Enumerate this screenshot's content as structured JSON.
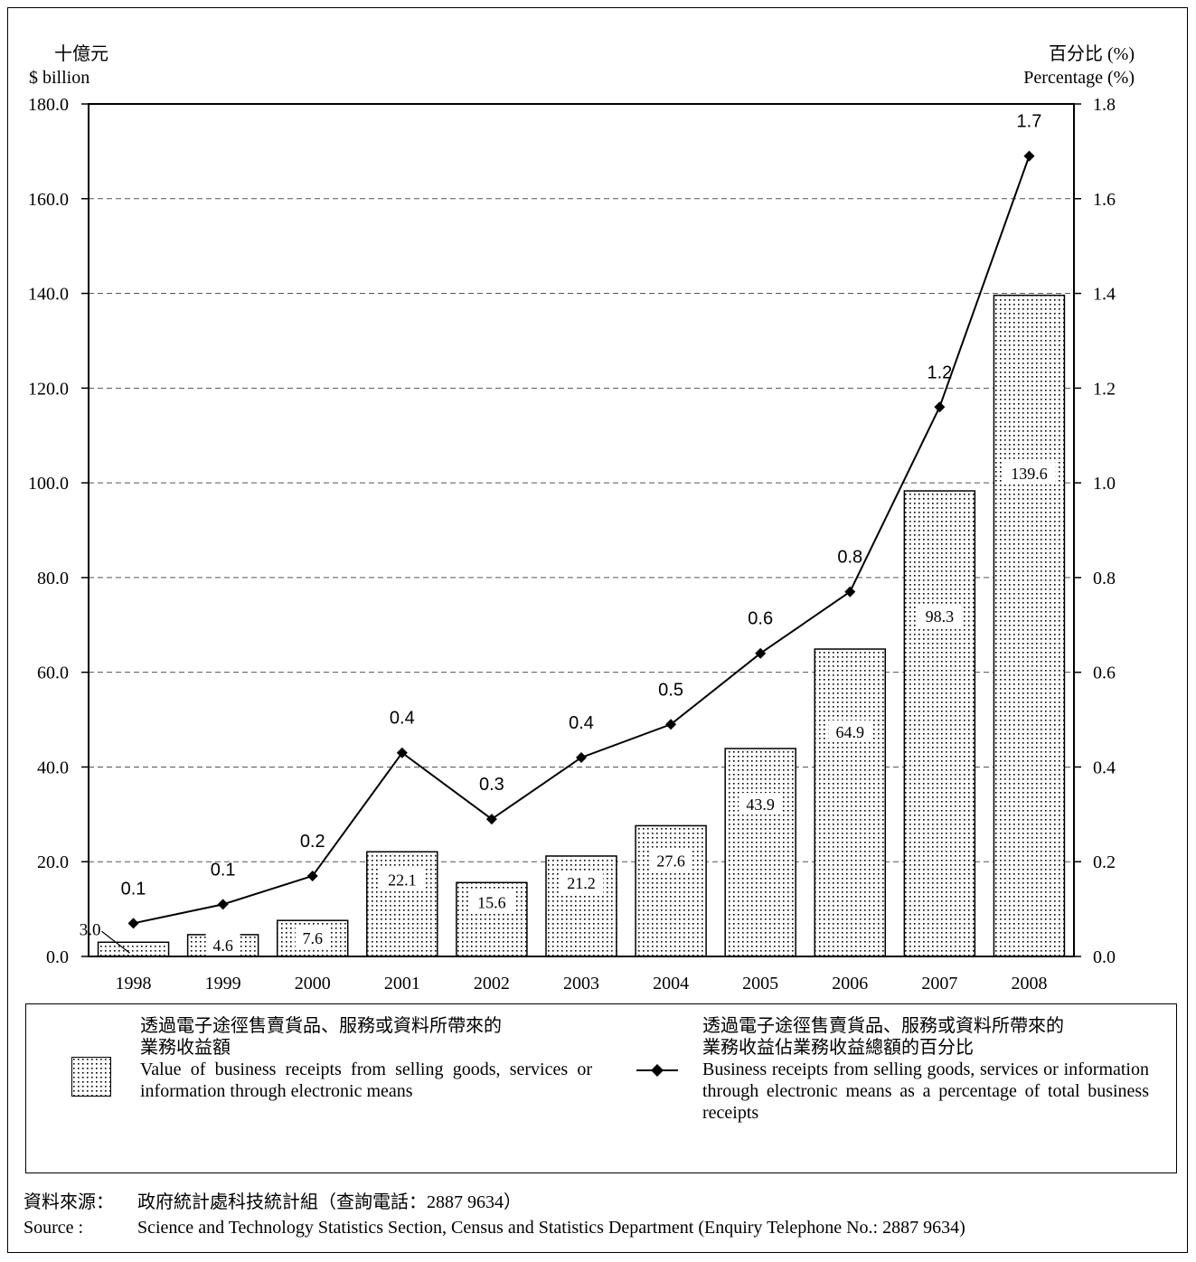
{
  "chart_data": {
    "type": "bar+line",
    "categories": [
      "1998",
      "1999",
      "2000",
      "2001",
      "2002",
      "2003",
      "2004",
      "2005",
      "2006",
      "2007",
      "2008"
    ],
    "left_axis": {
      "unit_zh": "十億元",
      "unit_en": "$ billion",
      "ylim": [
        0,
        180
      ],
      "ticks": [
        "0.0",
        "20.0",
        "40.0",
        "60.0",
        "80.0",
        "100.0",
        "120.0",
        "140.0",
        "160.0",
        "180.0"
      ]
    },
    "right_axis": {
      "unit_zh": "百分比 (%)",
      "unit_en": "Percentage (%)",
      "ylim": [
        0,
        1.8
      ],
      "ticks": [
        "0.0",
        "0.2",
        "0.4",
        "0.6",
        "0.8",
        "1.0",
        "1.2",
        "1.4",
        "1.6",
        "1.8"
      ]
    },
    "grid": "horizontal dashed",
    "series": [
      {
        "type": "bar",
        "axis": "left",
        "values": [
          3.0,
          4.6,
          7.6,
          22.1,
          15.6,
          21.2,
          27.6,
          43.9,
          64.9,
          98.3,
          139.6
        ],
        "labels": [
          "3.0",
          "4.6",
          "7.6",
          "22.1",
          "15.6",
          "21.2",
          "27.6",
          "43.9",
          "64.9",
          "98.3",
          "139.6"
        ]
      },
      {
        "type": "line",
        "axis": "right",
        "marker": "diamond",
        "values": [
          0.07,
          0.11,
          0.17,
          0.43,
          0.29,
          0.42,
          0.49,
          0.64,
          0.77,
          1.16,
          1.69
        ],
        "labels": [
          "0.1",
          "0.1",
          "0.2",
          "0.4",
          "0.3",
          "0.4",
          "0.5",
          "0.6",
          "0.8",
          "1.2",
          "1.7"
        ]
      }
    ]
  },
  "legend": {
    "bar_zh_1": "透過電子途徑售賣貨品、服務或資料所帶來的",
    "bar_zh_2": "業務收益額",
    "bar_en": "Value of business receipts from selling goods, services or information through electronic means",
    "line_zh_1": "透過電子途徑售賣貨品、服務或資料所帶來的",
    "line_zh_2": "業務收益佔業務收益總額的百分比",
    "line_en": "Business receipts from selling goods, services or information through electronic means as a percentage of total business receipts"
  },
  "source": {
    "zh_label": "資料來源：",
    "zh_text": "政府統計處科技統計組（查詢電話：2887 9634）",
    "en_label": "Source :",
    "en_text": "Science and Technology Statistics Section, Census and Statistics Department (Enquiry Telephone No.: 2887 9634)"
  }
}
